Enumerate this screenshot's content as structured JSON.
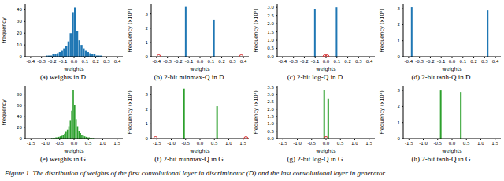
{
  "caption": "Figure 1. The distribution of weights of the first convolutional layer in discriminator (D) and the last convolutional layer in generator",
  "chart_data": [
    {
      "type": "histogram",
      "caption": "(a) weights in D",
      "x_label": "weights",
      "y_label": "Frequency",
      "color": "#1f77b4",
      "bins": [
        -0.3,
        -0.28,
        -0.26,
        -0.24,
        -0.22,
        -0.2,
        -0.18,
        -0.16,
        -0.14,
        -0.12,
        -0.1,
        -0.08,
        -0.06,
        -0.04,
        -0.02,
        0.0,
        0.02,
        0.04,
        0.06,
        0.08,
        0.1,
        0.12,
        0.14,
        0.16,
        0.18,
        0.2,
        0.22,
        0.24,
        0.26,
        0.28,
        0.3
      ],
      "values": [
        0,
        0,
        1,
        1,
        1,
        2,
        2,
        3,
        4,
        5,
        7,
        9,
        13,
        20,
        38,
        42,
        22,
        14,
        10,
        7,
        5,
        4,
        3,
        2,
        2,
        1,
        1,
        1,
        0,
        0
      ],
      "xlim": [
        -0.45,
        0.45
      ],
      "xticks": [
        -0.4,
        -0.3,
        -0.2,
        -0.1,
        {
          "value": 0,
          "label": "0.0"
        },
        0.1,
        0.2,
        0.3,
        0.4
      ],
      "ylim": [
        0,
        45
      ],
      "yticks": [
        0,
        10,
        20,
        30,
        40
      ]
    },
    {
      "type": "bar",
      "caption": "(b) 2-bit minmax-Q in D",
      "x_label": "weights",
      "y_label": "Frequency (x10³)",
      "color": "#1f77b4",
      "x": [
        -0.13,
        0.13
      ],
      "values": [
        3.5,
        2.6
      ],
      "markers": {
        "x": [
          -0.38,
          0.38
        ],
        "values": [
          0,
          0
        ],
        "color": "#d62728",
        "marker": "circle"
      },
      "xlim": [
        -0.45,
        0.45
      ],
      "xticks": [
        -0.4,
        -0.3,
        -0.2,
        -0.1,
        {
          "value": 0,
          "label": "0.0"
        },
        0.1,
        0.2,
        0.3,
        0.4
      ],
      "ylim": [
        0,
        3.7
      ],
      "yticks": [
        0,
        1,
        2,
        3
      ]
    },
    {
      "type": "bar",
      "caption": "(c) 2-bit log-Q in D",
      "x_label": "weights",
      "y_label": "Frequency (x10³)",
      "color": "#1f77b4",
      "x": [
        -0.1,
        0.1
      ],
      "values": [
        2.9,
        3.0
      ],
      "markers": {
        "x": [
          -0.01,
          0.01
        ],
        "values": [
          0,
          0
        ],
        "color": "#d62728",
        "marker": "circle"
      },
      "xlim": [
        -0.45,
        0.45
      ],
      "xticks": [
        -0.4,
        -0.3,
        -0.2,
        -0.1,
        {
          "value": 0,
          "label": "0.0"
        },
        0.1,
        0.2,
        0.3,
        0.4
      ],
      "ylim": [
        0,
        3.2
      ],
      "yticks": [
        {
          "value": 0,
          "label": "0.0"
        },
        0.5,
        {
          "value": 1,
          "label": "1.0"
        },
        1.5,
        {
          "value": 2,
          "label": "2.0"
        },
        2.5,
        {
          "value": 3,
          "label": "3.0"
        }
      ]
    },
    {
      "type": "bar",
      "caption": "(d) 2-bit tanh-Q in D",
      "x_label": "weights",
      "y_label": "Frequency (x10³)",
      "color": "#1f77b4",
      "x": [
        -0.37,
        0.33
      ],
      "values": [
        3.1,
        2.9
      ],
      "xlim": [
        -0.45,
        0.45
      ],
      "xticks": [
        -0.4,
        -0.3,
        -0.2,
        -0.1,
        {
          "value": 0,
          "label": "0.0"
        },
        0.1,
        0.2,
        0.3,
        0.4
      ],
      "ylim": [
        0,
        3.3
      ],
      "yticks": [
        0,
        1,
        2,
        3
      ]
    },
    {
      "type": "histogram",
      "caption": "(e) weights in G",
      "x_label": "weights",
      "y_label": "Frequency",
      "color": "#2ca02c",
      "bins": [
        -1.0,
        -0.95,
        -0.9,
        -0.85,
        -0.8,
        -0.75,
        -0.7,
        -0.65,
        -0.6,
        -0.55,
        -0.5,
        -0.45,
        -0.4,
        -0.35,
        -0.3,
        -0.25,
        -0.2,
        -0.15,
        -0.1,
        -0.05,
        0.0,
        0.05,
        0.1,
        0.15,
        0.2,
        0.25,
        0.3,
        0.35,
        0.4,
        0.45,
        0.5,
        0.55,
        0.6,
        0.65,
        0.7,
        0.75,
        0.8,
        0.85,
        0.9,
        0.95,
        1.0
      ],
      "values": [
        0,
        0,
        0,
        0,
        1,
        1,
        1,
        2,
        2,
        3,
        4,
        5,
        7,
        9,
        12,
        16,
        22,
        32,
        50,
        88,
        60,
        35,
        22,
        14,
        10,
        7,
        5,
        4,
        3,
        2,
        2,
        1,
        1,
        1,
        0,
        0,
        0,
        0,
        0,
        0
      ],
      "xlim": [
        -1.7,
        1.7
      ],
      "xticks": [
        -1.5,
        {
          "value": -1,
          "label": "-1.0"
        },
        -0.5,
        {
          "value": 0,
          "label": "0.0"
        },
        0.5,
        {
          "value": 1,
          "label": "1.0"
        },
        1.5
      ],
      "ylim": [
        0,
        95
      ],
      "yticks": [
        0,
        20,
        40,
        60,
        80
      ]
    },
    {
      "type": "bar",
      "caption": "(f) 2-bit minmax-Q in G",
      "x_label": "weights",
      "y_label": "Frequency (x10³)",
      "color": "#2ca02c",
      "x": [
        -0.55,
        0.6
      ],
      "values": [
        3.4,
        2.2
      ],
      "markers": {
        "x": [
          -1.55,
          1.6
        ],
        "values": [
          0,
          0
        ],
        "color": "#d62728",
        "marker": "circle"
      },
      "xlim": [
        -1.7,
        1.7
      ],
      "xticks": [
        -1.5,
        {
          "value": -1,
          "label": "-1.0"
        },
        -0.5,
        {
          "value": 0,
          "label": "0.0"
        },
        0.5,
        {
          "value": 1,
          "label": "1.0"
        },
        1.5
      ],
      "ylim": [
        0,
        3.6
      ],
      "yticks": [
        0,
        1,
        2,
        3
      ]
    },
    {
      "type": "bar",
      "caption": "(g) 2-bit log-Q in G",
      "x_label": "weights",
      "y_label": "Frequency (x10³)",
      "color": "#2ca02c",
      "x": [
        -0.06,
        0.08
      ],
      "values": [
        3.3,
        2.7
      ],
      "markers": {
        "x": [
          0.0
        ],
        "values": [
          0
        ],
        "color": "#d62728",
        "marker": "circle"
      },
      "xlim": [
        -1.7,
        1.7
      ],
      "xticks": [
        -1.5,
        {
          "value": -1,
          "label": "-1.0"
        },
        -0.5,
        {
          "value": 0,
          "label": "0.0"
        },
        0.5,
        {
          "value": 1,
          "label": "1.0"
        },
        1.5
      ],
      "ylim": [
        0,
        3.6
      ],
      "yticks": [
        {
          "value": 0,
          "label": "0.0"
        },
        0.5,
        {
          "value": 1,
          "label": "1.0"
        },
        1.5,
        {
          "value": 2,
          "label": "2.0"
        },
        2.5,
        {
          "value": 3,
          "label": "3.0"
        },
        3.5
      ]
    },
    {
      "type": "bar",
      "caption": "(h) 2-bit tanh-Q in G",
      "x_label": "weights",
      "y_label": "Frequency (x10³)",
      "color": "#2ca02c",
      "x": [
        -0.4,
        0.3
      ],
      "values": [
        3.0,
        2.9
      ],
      "xlim": [
        -1.7,
        1.7
      ],
      "xticks": [
        -1.5,
        {
          "value": -1,
          "label": "-1.0"
        },
        -0.5,
        {
          "value": 0,
          "label": "0.0"
        },
        0.5,
        {
          "value": 1,
          "label": "1.0"
        },
        1.5
      ],
      "ylim": [
        0,
        3.3
      ],
      "yticks": [
        0,
        1,
        2,
        3
      ]
    }
  ]
}
